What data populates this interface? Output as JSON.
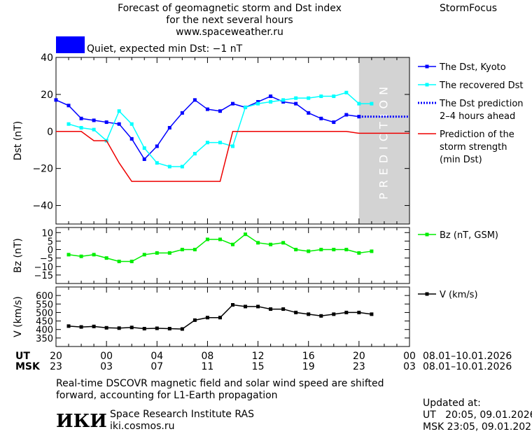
{
  "header": {
    "title_line1": "Forecast of geomagnetic storm and Dst index",
    "title_line2": "for the next several hours",
    "site": "www.spaceweather.ru",
    "brand": "StormFocus",
    "status": "Quiet, expected min Dst: −1 nT",
    "status_color": "#0000ff"
  },
  "footer": {
    "note_line1": "Real-time DSCOVR magnetic field and solar wind speed are shifted",
    "note_line2": "forward, accounting for L1-Earth propagation",
    "institute": "Space Research Institute RAS",
    "institute_url": "iki.cosmos.ru",
    "logo_text": "ИКИ",
    "updated_label": "Updated at:",
    "updated_ut": "UT   20:05, 09.01.2026",
    "updated_msk": "MSK 23:05, 09.01.2026"
  },
  "time_axis": {
    "ut_label": "UT",
    "msk_label": "MSK",
    "ut_ticks": [
      "20",
      "00",
      "04",
      "08",
      "12",
      "16",
      "20",
      "00"
    ],
    "msk_ticks": [
      "23",
      "03",
      "07",
      "11",
      "15",
      "19",
      "23",
      "03"
    ],
    "ut_range": "08.01–10.01.2026",
    "msk_range": "08.01–10.01.2026"
  },
  "chart_data": [
    {
      "type": "line",
      "ylabel": "Dst (nT)",
      "ylim": [
        -50,
        40
      ],
      "yticks": [
        40,
        20,
        0,
        -20,
        -40
      ],
      "xlim": [
        0,
        28
      ],
      "prediction_band": {
        "from": 24,
        "to": 28,
        "label": "PREDICTION",
        "color": "#d3d3d3"
      },
      "series": [
        {
          "name": "The Dst, Kyoto",
          "color": "#0000ff",
          "marker": "square",
          "x": [
            0,
            1,
            2,
            3,
            4,
            5,
            6,
            7,
            8,
            9,
            10,
            11,
            12,
            13,
            14,
            15,
            16,
            17,
            18,
            19,
            20,
            21,
            22,
            23,
            24
          ],
          "y": [
            17,
            14,
            7,
            6,
            5,
            4,
            -4,
            -15,
            -8,
            2,
            10,
            17,
            12,
            11,
            15,
            13,
            16,
            19,
            16,
            15,
            10,
            7,
            5,
            9,
            8
          ]
        },
        {
          "name": "The recovered Dst",
          "color": "#00ffff",
          "marker": "square",
          "x": [
            1,
            2,
            3,
            4,
            5,
            6,
            7,
            8,
            9,
            10,
            11,
            12,
            13,
            14,
            15,
            16,
            17,
            18,
            19,
            20,
            21,
            22,
            23,
            24,
            25
          ],
          "y": [
            4,
            2,
            1,
            -5,
            11,
            4,
            -9,
            -17,
            -19,
            -19,
            -12,
            -6,
            -6,
            -8,
            13,
            15,
            16,
            17,
            18,
            18,
            19,
            19,
            21,
            15,
            15
          ]
        },
        {
          "name": "The Dst prediction\n2–4 hours ahead",
          "color": "#0000ff",
          "dash": true,
          "x": [
            24,
            25,
            26,
            27,
            28
          ],
          "y": [
            8,
            8,
            8,
            8,
            8
          ]
        },
        {
          "name": "Prediction of the\nstorm strength\n(min Dst)",
          "color": "#ee0000",
          "step": true,
          "x": [
            0,
            2,
            3,
            4,
            5,
            6,
            7,
            12,
            13,
            14,
            23,
            24,
            25,
            28
          ],
          "y": [
            0,
            0,
            -5,
            -5,
            -17,
            -27,
            -27,
            -27,
            -27,
            0,
            0,
            -1,
            -1,
            -1
          ]
        }
      ]
    },
    {
      "type": "line",
      "ylabel": "Bz (nT)",
      "ylim": [
        -20,
        13
      ],
      "yticks": [
        10,
        5,
        0,
        -5,
        -10,
        -15
      ],
      "xlim": [
        0,
        28
      ],
      "series": [
        {
          "name": "Bz (nT, GSM)",
          "color": "#00ee00",
          "marker": "square",
          "x": [
            1,
            2,
            3,
            4,
            5,
            6,
            7,
            8,
            9,
            10,
            11,
            12,
            13,
            14,
            15,
            16,
            17,
            18,
            19,
            20,
            21,
            22,
            23,
            24,
            25
          ],
          "y": [
            -3,
            -4,
            -3,
            -5,
            -7,
            -7,
            -3,
            -2,
            -2,
            0,
            0,
            6,
            6,
            3,
            9,
            4,
            3,
            4,
            0,
            -1,
            0,
            0,
            0,
            -2,
            -1
          ]
        }
      ]
    },
    {
      "type": "line",
      "ylabel": "V (km/s)",
      "ylim": [
        300,
        650
      ],
      "yticks": [
        600,
        550,
        500,
        450,
        400,
        350
      ],
      "xlim": [
        0,
        28
      ],
      "series": [
        {
          "name": "V (km/s)",
          "color": "#000000",
          "marker": "square",
          "x": [
            1,
            2,
            3,
            4,
            5,
            6,
            7,
            8,
            9,
            10,
            11,
            12,
            13,
            14,
            15,
            16,
            17,
            18,
            19,
            20,
            21,
            22,
            23,
            24,
            25
          ],
          "y": [
            420,
            415,
            418,
            410,
            408,
            412,
            405,
            407,
            405,
            403,
            455,
            470,
            470,
            545,
            535,
            535,
            520,
            520,
            500,
            490,
            480,
            490,
            500,
            500,
            490
          ]
        }
      ]
    }
  ]
}
